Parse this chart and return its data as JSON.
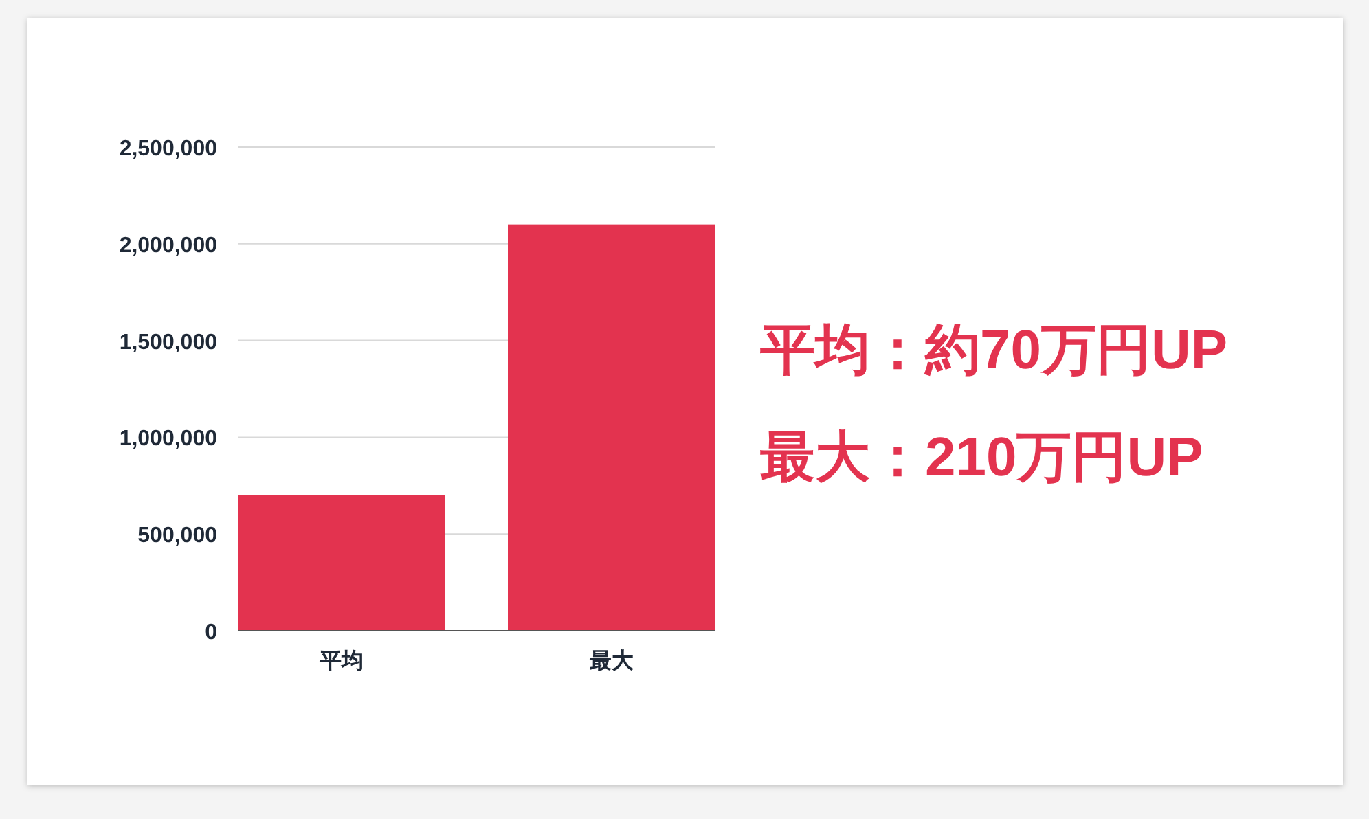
{
  "chart_data": {
    "type": "bar",
    "categories": [
      "平均",
      "最大"
    ],
    "values": [
      700000,
      2100000
    ],
    "color": "#e3334f",
    "ylim": [
      0,
      2500000
    ],
    "yticks": [
      0,
      {
        "value": 500000,
        "label": "500,000"
      },
      {
        "value": 1000000,
        "label": "1,000,000"
      },
      {
        "value": 1500000,
        "label": "1,500,000"
      },
      {
        "value": 2000000,
        "label": "2,000,000"
      },
      {
        "value": 2500000,
        "label": "2,500,000"
      }
    ],
    "grid": "y",
    "annotations": [
      "平均：約70万円UP",
      "最大：210万円UP"
    ]
  }
}
